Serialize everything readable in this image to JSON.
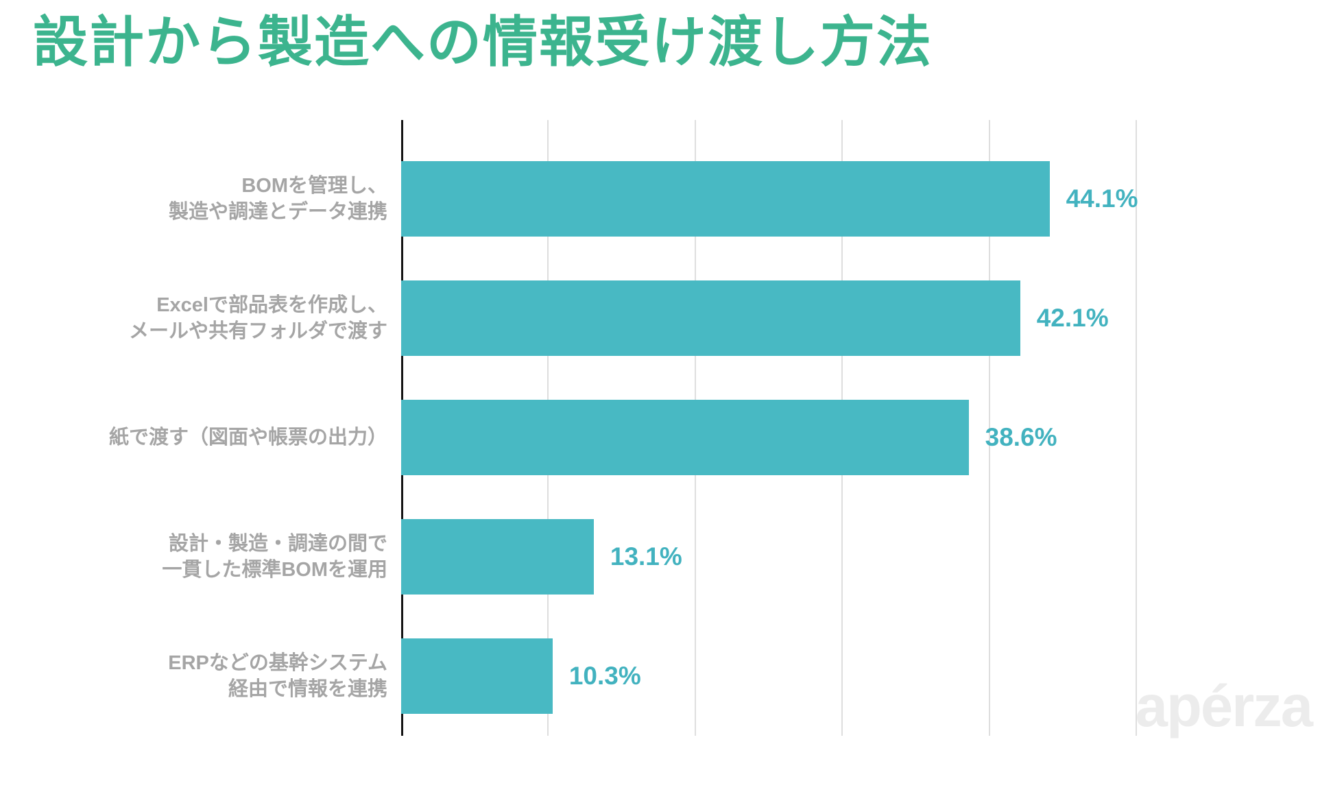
{
  "title": {
    "text": "設計から製造への情報受け渡し方法",
    "color": "#3cb48e"
  },
  "watermark": {
    "text": "apérza",
    "color": "#ececec"
  },
  "chart_data": {
    "type": "bar",
    "orientation": "horizontal",
    "title": "設計から製造への情報受け渡し方法",
    "xlabel": "",
    "ylabel": "",
    "xlim": [
      0,
      53.4
    ],
    "gridlines_at": [
      10,
      20,
      30,
      40,
      50
    ],
    "grid": true,
    "legend": false,
    "bar_color": "#48b9c3",
    "value_label_color": "#42b2bf",
    "category_label_color": "#a5a5a5",
    "axis_color": "#141414",
    "gridline_color": "#dedede",
    "categories": [
      "BOMを管理し、製造や調達とデータ連携",
      "Excelで部品表を作成し、メールや共有フォルダで渡す",
      "紙で渡す（図面や帳票の出力）",
      "設計・製造・調達の間で一貫した標準BOMを運用",
      "ERPなどの基幹システム経由で情報を連携"
    ],
    "values": [
      44.1,
      42.1,
      38.6,
      13.1,
      10.3
    ],
    "bars": [
      {
        "label_lines": [
          "BOMを管理し、",
          "製造や調達とデータ連携"
        ],
        "value": 44.1,
        "value_label": "44.1%"
      },
      {
        "label_lines": [
          "Excelで部品表を作成し、",
          "メールや共有フォルダで渡す"
        ],
        "value": 42.1,
        "value_label": "42.1%"
      },
      {
        "label_lines": [
          "紙で渡す（図面や帳票の出力）"
        ],
        "value": 38.6,
        "value_label": "38.6%"
      },
      {
        "label_lines": [
          "設計・製造・調達の間で",
          "一貫した標準BOMを運用"
        ],
        "value": 13.1,
        "value_label": "13.1%"
      },
      {
        "label_lines": [
          "ERPなどの基幹システム",
          "経由で情報を連携"
        ],
        "value": 10.3,
        "value_label": "10.3%"
      }
    ]
  }
}
